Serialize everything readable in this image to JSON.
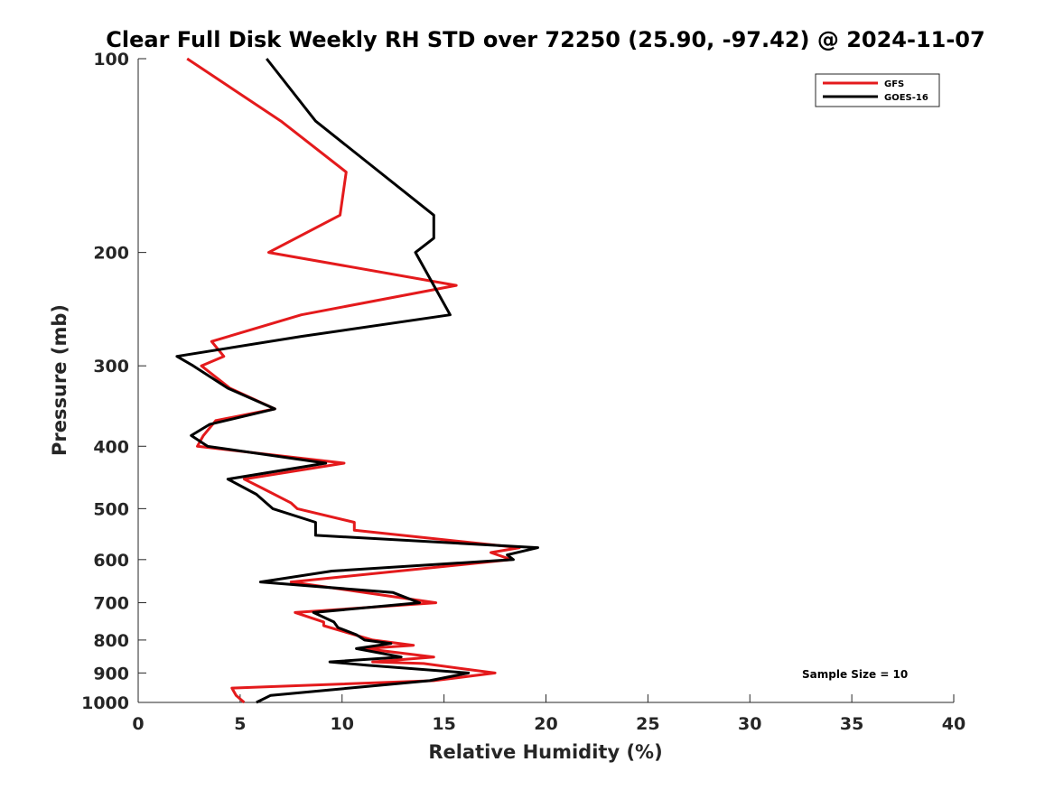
{
  "chart_data": {
    "type": "line",
    "title": "Clear Full Disk Weekly RH STD over 72250 (25.90, -97.42) @ 2024-11-07",
    "xlabel": "Relative Humidity (%)",
    "ylabel": "Pressure (mb)",
    "xlim": [
      0,
      40
    ],
    "ylim": [
      100,
      1000
    ],
    "y_scale": "log",
    "y_reversed": true,
    "grid": false,
    "legend_placement": "top-right",
    "xticks": [
      "0",
      "5",
      "10",
      "15",
      "20",
      "25",
      "30",
      "35",
      "40"
    ],
    "yticks": [
      "100",
      "200",
      "300",
      "400",
      "500",
      "600",
      "700",
      "800",
      "900",
      "1000"
    ],
    "annotation": "Sample Size = 10",
    "series": [
      {
        "name": "GFS",
        "color": "#e41a1c",
        "points": [
          [
            2.4,
            100
          ],
          [
            7.0,
            125
          ],
          [
            10.2,
            150
          ],
          [
            9.9,
            175
          ],
          [
            6.4,
            200
          ],
          [
            15.6,
            225
          ],
          [
            8.0,
            250
          ],
          [
            3.6,
            275
          ],
          [
            4.2,
            290
          ],
          [
            3.1,
            300
          ],
          [
            4.5,
            325
          ],
          [
            6.7,
            350
          ],
          [
            3.8,
            365
          ],
          [
            3.2,
            385
          ],
          [
            2.9,
            400
          ],
          [
            10.1,
            425
          ],
          [
            5.2,
            450
          ],
          [
            6.1,
            465
          ],
          [
            7.5,
            490
          ],
          [
            7.8,
            500
          ],
          [
            10.6,
            525
          ],
          [
            10.6,
            540
          ],
          [
            18.7,
            575
          ],
          [
            17.3,
            585
          ],
          [
            18.3,
            600
          ],
          [
            7.5,
            650
          ],
          [
            14.6,
            700
          ],
          [
            7.7,
            725
          ],
          [
            9.1,
            750
          ],
          [
            9.1,
            760
          ],
          [
            11.5,
            800
          ],
          [
            13.5,
            815
          ],
          [
            11.1,
            825
          ],
          [
            14.5,
            850
          ],
          [
            11.5,
            865
          ],
          [
            14.0,
            870
          ],
          [
            17.5,
            900
          ],
          [
            14.5,
            925
          ],
          [
            4.6,
            950
          ],
          [
            4.8,
            975
          ],
          [
            5.2,
            1000
          ]
        ]
      },
      {
        "name": "GOES-16",
        "color": "#000000",
        "points": [
          [
            6.3,
            100
          ],
          [
            8.7,
            125
          ],
          [
            14.5,
            175
          ],
          [
            14.5,
            190
          ],
          [
            13.6,
            200
          ],
          [
            14.5,
            225
          ],
          [
            15.3,
            250
          ],
          [
            8.0,
            270
          ],
          [
            1.9,
            290
          ],
          [
            2.7,
            300
          ],
          [
            4.4,
            325
          ],
          [
            6.7,
            350
          ],
          [
            3.5,
            370
          ],
          [
            2.6,
            385
          ],
          [
            3.4,
            400
          ],
          [
            9.2,
            425
          ],
          [
            4.4,
            450
          ],
          [
            5.8,
            475
          ],
          [
            6.6,
            500
          ],
          [
            8.7,
            525
          ],
          [
            8.7,
            550
          ],
          [
            19.6,
            575
          ],
          [
            18.1,
            590
          ],
          [
            18.4,
            600
          ],
          [
            9.5,
            625
          ],
          [
            6.0,
            650
          ],
          [
            12.5,
            675
          ],
          [
            13.8,
            700
          ],
          [
            8.6,
            725
          ],
          [
            9.6,
            750
          ],
          [
            9.8,
            765
          ],
          [
            10.7,
            785
          ],
          [
            11.1,
            800
          ],
          [
            12.4,
            810
          ],
          [
            10.7,
            825
          ],
          [
            12.9,
            850
          ],
          [
            9.4,
            865
          ],
          [
            11.2,
            875
          ],
          [
            16.2,
            900
          ],
          [
            14.3,
            925
          ],
          [
            6.5,
            975
          ],
          [
            5.8,
            1000
          ]
        ]
      }
    ]
  }
}
